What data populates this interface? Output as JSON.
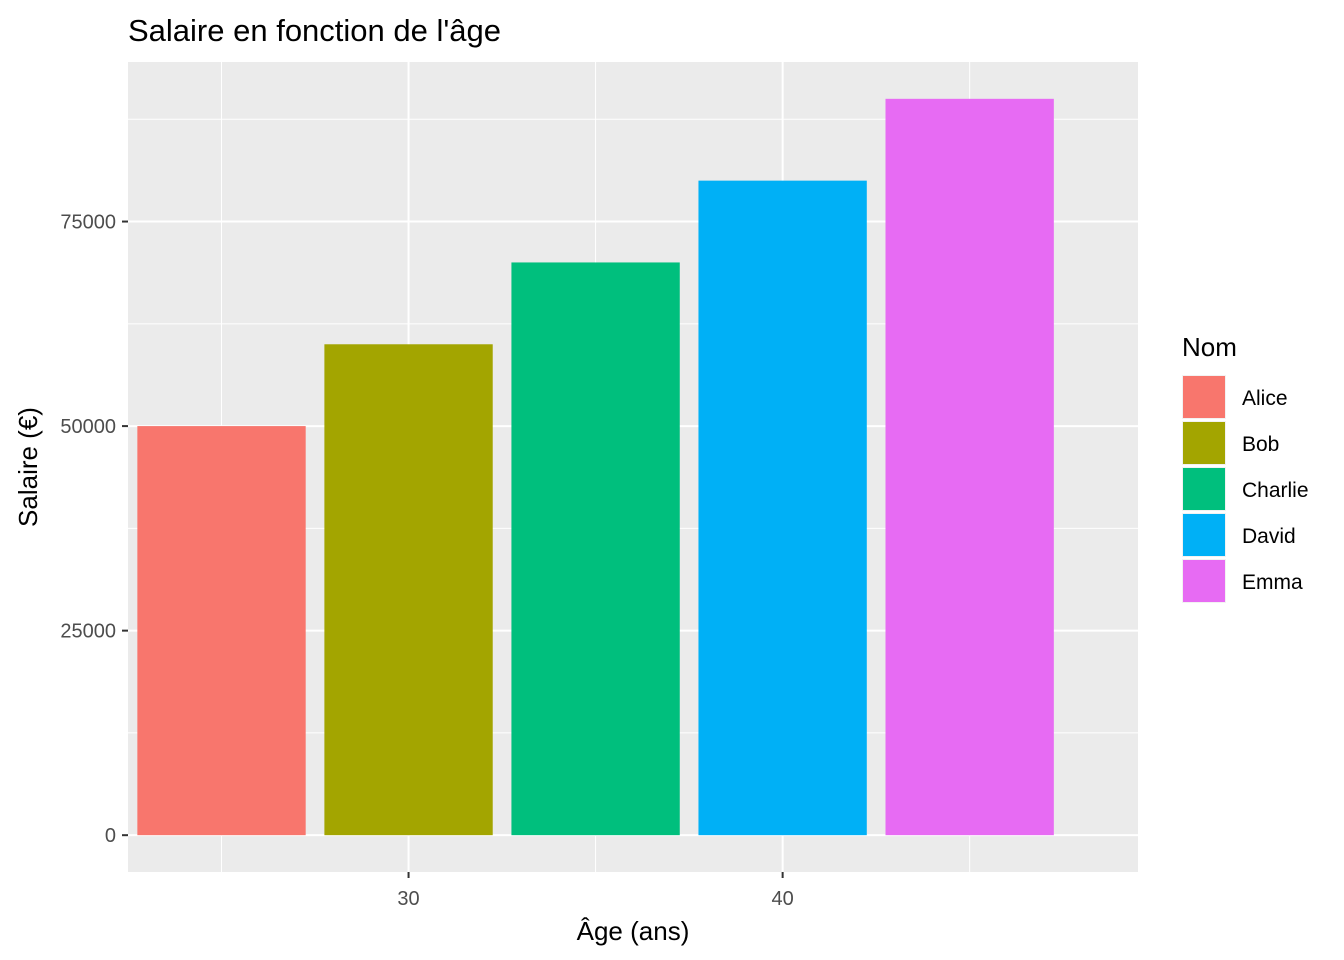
{
  "chart_data": {
    "type": "bar",
    "title": "Salaire en fonction de l'âge",
    "xlabel": "Âge (ans)",
    "ylabel": "Salaire (€)",
    "legend_title": "Nom",
    "legend_position": "right",
    "grid": true,
    "xlim": [
      22.5,
      49.5
    ],
    "ylim": [
      -4500,
      94500
    ],
    "x_ticks": [
      30,
      40
    ],
    "y_ticks": [
      0,
      25000,
      50000,
      75000
    ],
    "x": [
      25,
      30,
      35,
      40,
      45
    ],
    "bar_width": 4.5,
    "categories": [
      "Alice",
      "Bob",
      "Charlie",
      "David",
      "Emma"
    ],
    "values": [
      50000,
      60000,
      70000,
      80000,
      90000
    ],
    "colors": [
      "#F8766D",
      "#A3A500",
      "#00BF7D",
      "#00B0F6",
      "#E76BF3"
    ],
    "panel_background": "#EBEBEB",
    "grid_color": "#FFFFFF"
  }
}
